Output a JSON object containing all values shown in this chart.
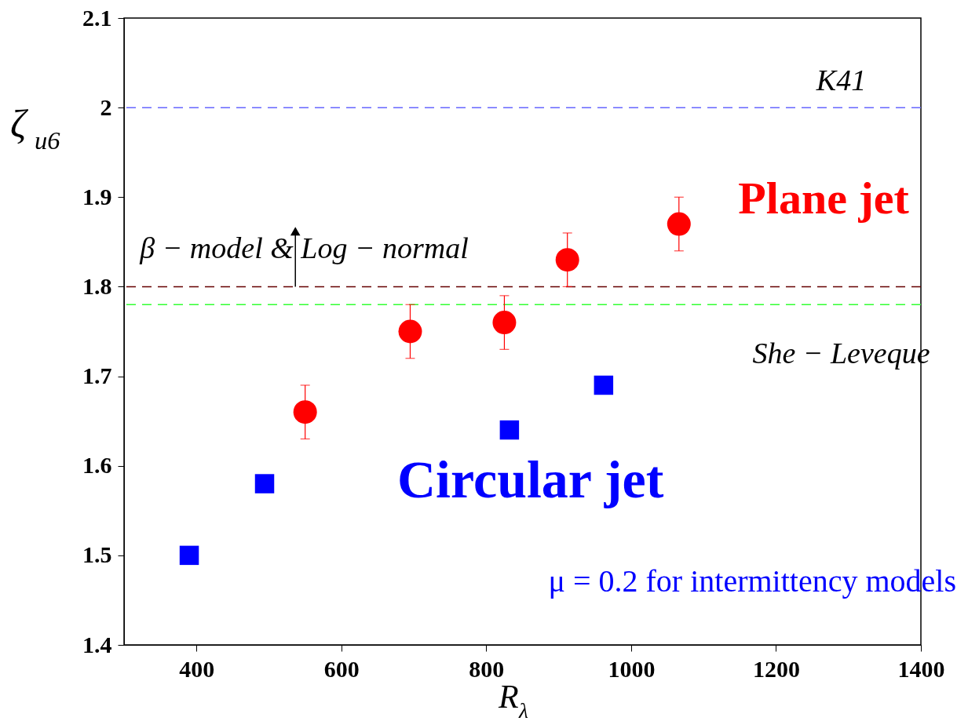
{
  "chart_data": {
    "type": "scatter",
    "xlabel": "R$_{λ}$",
    "ylabel": "ζ$_{u6}$",
    "xlim": [
      300,
      1400
    ],
    "xticks": [
      400,
      600,
      800,
      1000,
      1200,
      1400
    ],
    "ylim": [
      1.4,
      2.1
    ],
    "yticks": [
      1.4,
      1.5,
      1.6,
      1.7,
      1.8,
      1.9,
      2,
      2.1
    ],
    "grid": false,
    "series": [
      {
        "name": "Plane jet",
        "color": "#ff0000",
        "marker": "circle",
        "x": [
          550,
          695,
          825,
          912,
          1066
        ],
        "values": [
          1.66,
          1.75,
          1.76,
          1.83,
          1.87
        ],
        "errors": [
          0.03,
          0.03,
          0.03,
          0.03,
          0.03
        ]
      },
      {
        "name": "Circular jet",
        "color": "#0000ff",
        "marker": "square",
        "x": [
          390,
          494,
          832,
          962
        ],
        "values": [
          1.5,
          1.58,
          1.64,
          1.69
        ]
      }
    ],
    "ref_lines": [
      {
        "axis": "y",
        "value": 2,
        "label": "K41",
        "color": "#6666ff",
        "line_style": "dashed"
      },
      {
        "axis": "y",
        "value": 1.8,
        "label": "β − model & Log − normal",
        "color": "#660000",
        "line_style": "dashed"
      },
      {
        "axis": "y",
        "value": 1.78,
        "label": "She − Leveque",
        "color": "#33ff33",
        "line_style": "dashed"
      }
    ],
    "annotations": [
      "μ = 0.2 for intermittency models"
    ]
  }
}
